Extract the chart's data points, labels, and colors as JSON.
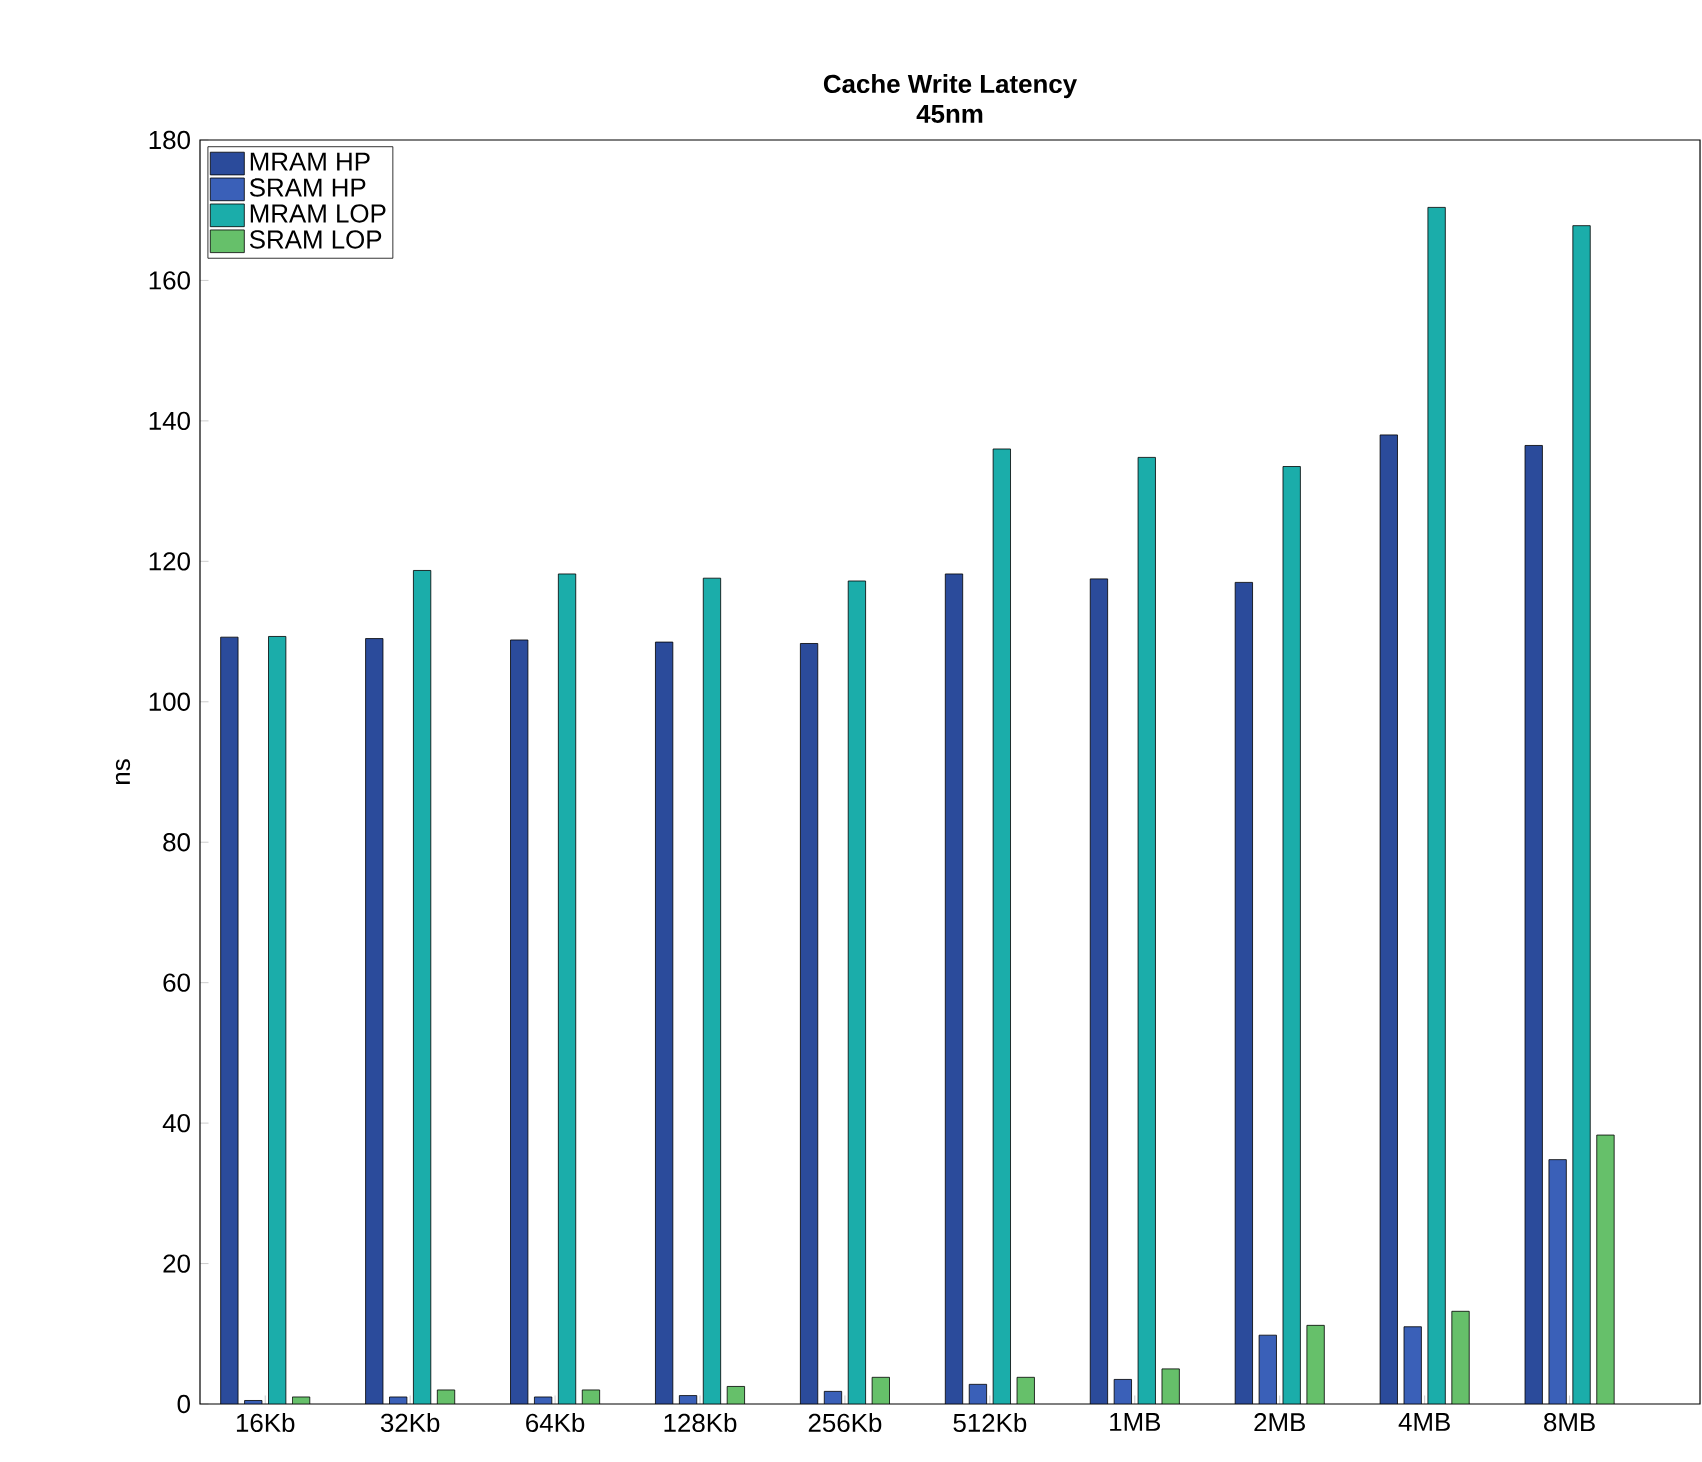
{
  "chart_data": {
    "type": "bar",
    "title": "Cache Write Latency",
    "subtitle": "45nm",
    "ylabel": "ns",
    "categories": [
      "16Kb",
      "32Kb",
      "64Kb",
      "128Kb",
      "256Kb",
      "512Kb",
      "1MB",
      "2MB",
      "4MB",
      "8MB"
    ],
    "series": [
      {
        "name": "MRAM HP",
        "color": "#2b4b9b",
        "values": [
          109.2,
          109,
          108.8,
          108.5,
          108.3,
          118.2,
          117.5,
          117,
          138,
          136.5
        ]
      },
      {
        "name": "SRAM HP",
        "color": "#3a60b8",
        "values": [
          0.5,
          1,
          1,
          1.2,
          1.8,
          2.8,
          3.5,
          9.8,
          11,
          34.8
        ]
      },
      {
        "name": "MRAM LOP",
        "color": "#1badaa",
        "values": [
          109.3,
          118.7,
          118.2,
          117.6,
          117.2,
          136,
          134.8,
          133.5,
          170.4,
          167.8
        ]
      },
      {
        "name": "SRAM LOP",
        "color": "#66c06a",
        "values": [
          1,
          2,
          2,
          2.5,
          3.8,
          3.8,
          5,
          11.2,
          13.2,
          38.3
        ]
      }
    ],
    "ylim": [
      0,
      180
    ],
    "yticks": [
      0,
      20,
      40,
      60,
      80,
      100,
      120,
      140,
      160,
      180
    ],
    "legend": "top left",
    "grid": false
  }
}
